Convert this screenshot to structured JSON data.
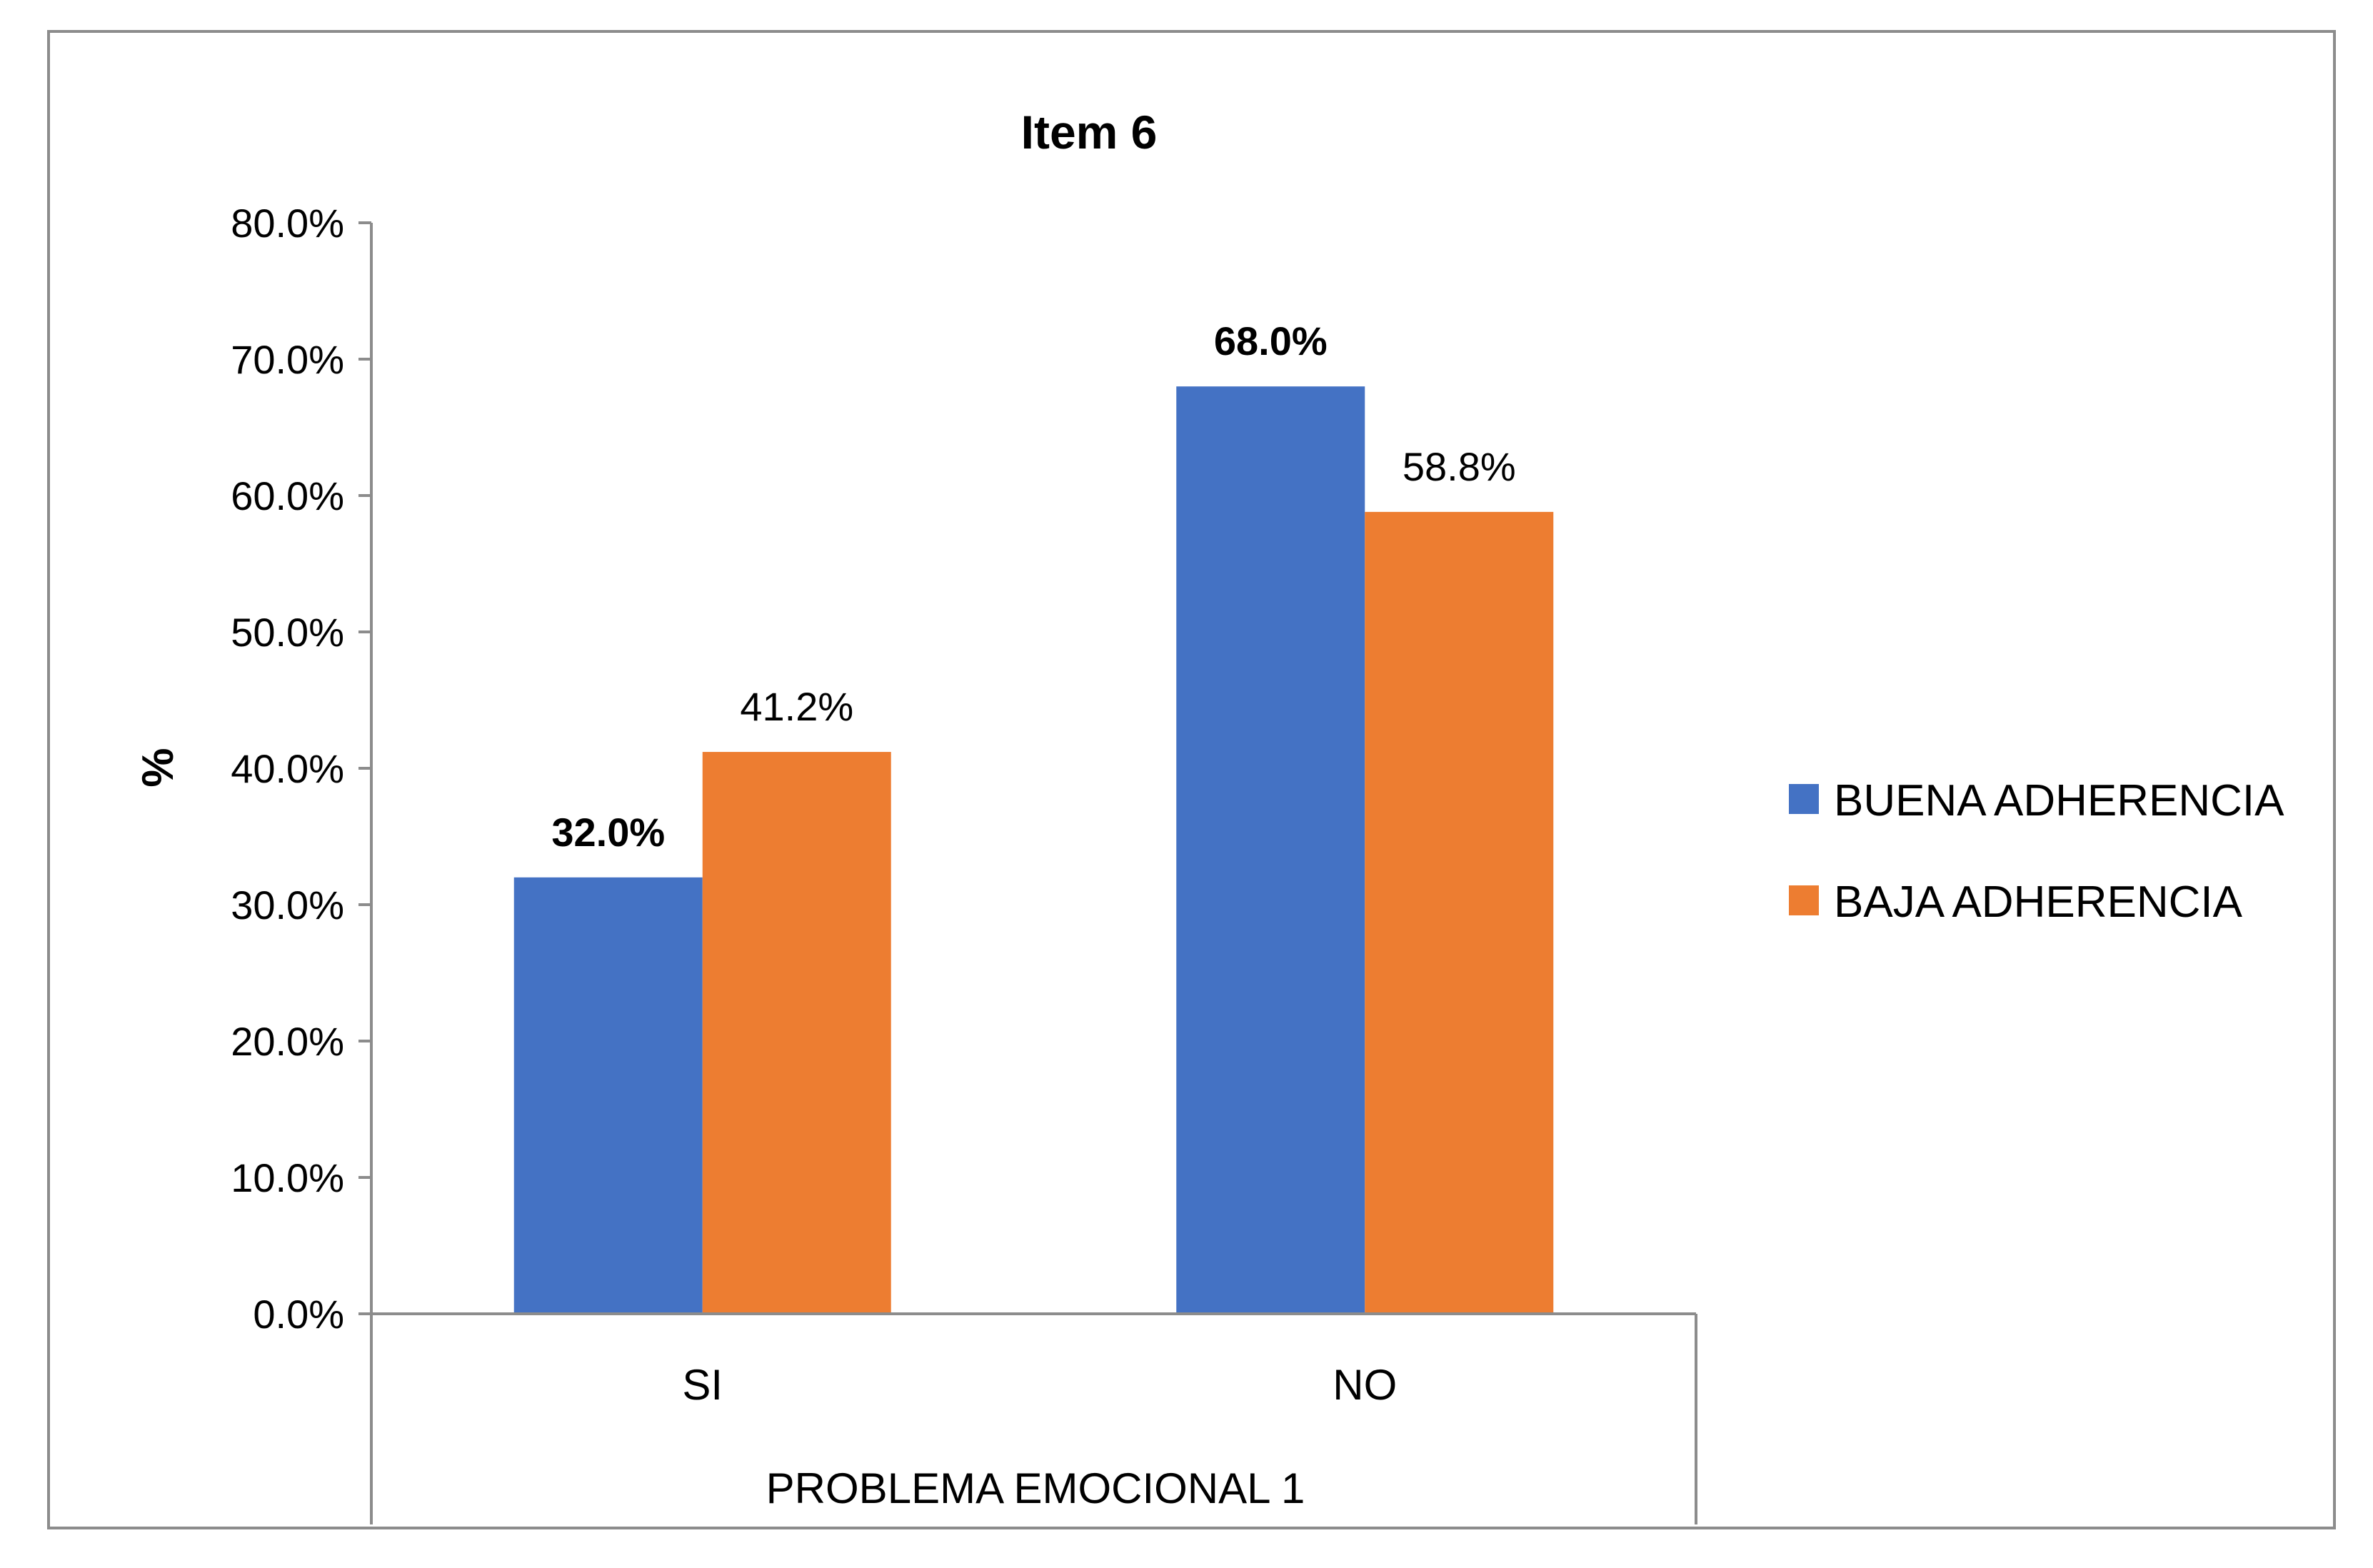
{
  "chart_data": {
    "type": "bar",
    "title": "Item 6",
    "ylabel": "%",
    "xlabel": "PROBLEMA EMOCIONAL 1",
    "categories": [
      "SI",
      "NO"
    ],
    "ylim": [
      0,
      80
    ],
    "yticks": [
      "0.0%",
      "10.0%",
      "20.0%",
      "30.0%",
      "40.0%",
      "50.0%",
      "60.0%",
      "70.0%",
      "80.0%"
    ],
    "series": [
      {
        "name": "BUENA ADHERENCIA",
        "color": "#4472C4",
        "values": [
          32.0,
          68.0
        ],
        "labels": [
          "32.0%",
          "68.0%"
        ],
        "label_bold": true
      },
      {
        "name": "BAJA ADHERENCIA",
        "color": "#ED7D31",
        "values": [
          41.2,
          58.8
        ],
        "labels": [
          "41.2%",
          "58.8%"
        ],
        "label_bold": false
      }
    ],
    "grid": false,
    "legend_position": "right"
  }
}
